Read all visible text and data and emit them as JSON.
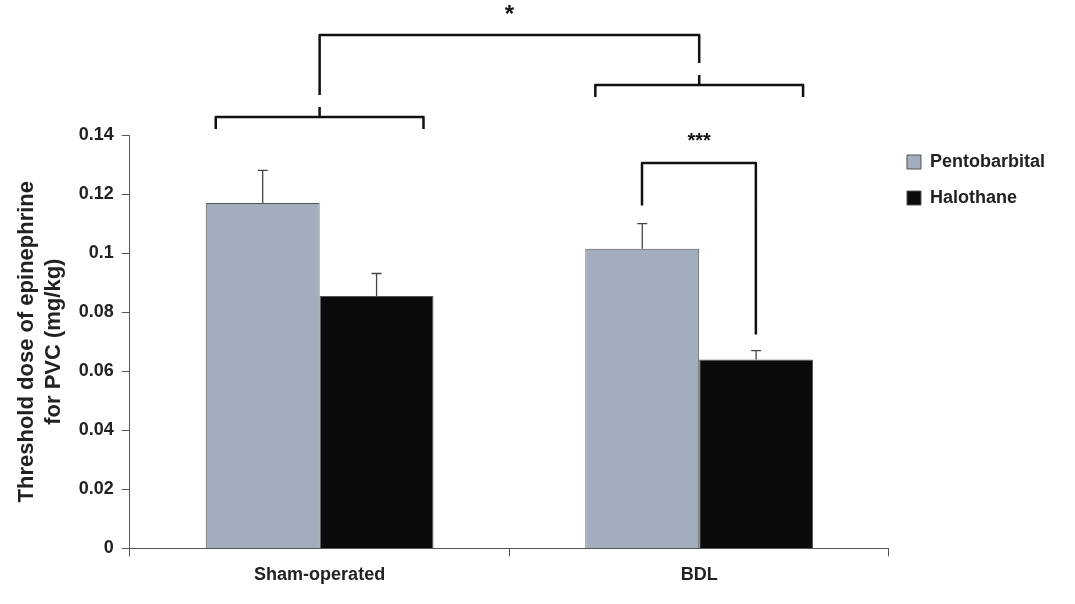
{
  "chart_data": {
    "type": "bar",
    "ylabel": "Threshold dose of epinephrine\nfor PVC (mg/kg)",
    "categories": [
      "Sham-operated",
      "BDL"
    ],
    "series": [
      {
        "name": "Pentobarbital",
        "color": "#a2adbd",
        "values": [
          0.117,
          0.1015
        ],
        "errors": [
          0.011,
          0.0085
        ]
      },
      {
        "name": "Halothane",
        "color": "#0b0b0d",
        "values": [
          0.0855,
          0.064
        ],
        "errors": [
          0.0076,
          0.003
        ]
      }
    ],
    "ylim": [
      0,
      0.14
    ],
    "yticks": [
      0,
      0.02,
      0.04,
      0.06,
      0.08,
      0.1,
      0.12,
      0.14
    ],
    "grid": false,
    "legend": "right",
    "annotations": [
      "*",
      "***"
    ]
  }
}
